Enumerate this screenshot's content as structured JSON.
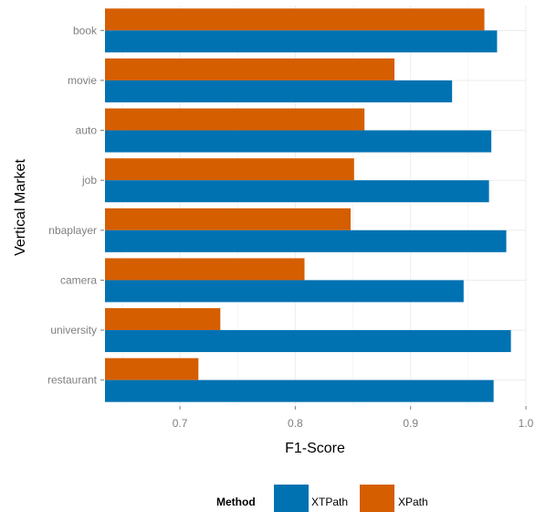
{
  "chart_data": {
    "type": "bar",
    "orientation": "horizontal",
    "categories": [
      "book",
      "movie",
      "auto",
      "job",
      "nbaplayer",
      "camera",
      "university",
      "restaurant"
    ],
    "series": [
      {
        "name": "XTPath",
        "color": "#0072B2",
        "values": [
          0.975,
          0.936,
          0.97,
          0.968,
          0.983,
          0.946,
          0.987,
          0.972
        ]
      },
      {
        "name": "XPath",
        "color": "#D55E00",
        "values": [
          0.964,
          0.886,
          0.86,
          0.851,
          0.848,
          0.808,
          0.735,
          0.716
        ]
      }
    ],
    "xlabel": "F1-Score",
    "ylabel": "Vertical Market",
    "xlim": [
      0.635,
      1.0
    ],
    "xticks": [
      "0.7",
      "0.8",
      "0.9",
      "1.0"
    ],
    "grid": true,
    "legend": {
      "title": "Method",
      "position": "bottom"
    }
  }
}
